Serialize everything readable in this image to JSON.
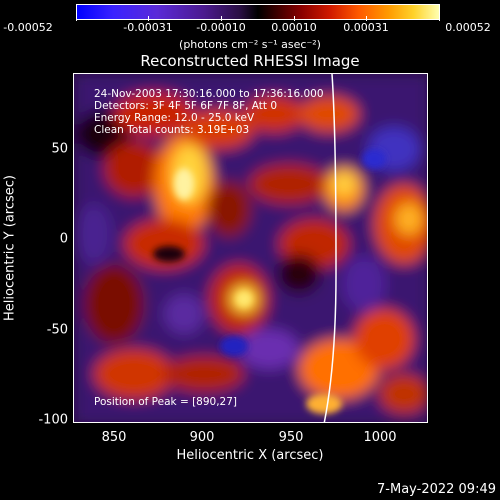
{
  "colorbar": {
    "ticks": [
      "-0.00052",
      "-0.00031",
      "-0.00010",
      "0.00010",
      "0.00031",
      "0.00052"
    ],
    "units": "(photons cm⁻² s⁻¹ asec⁻²)"
  },
  "title": "Reconstructed RHESSI Image",
  "info": {
    "line1": "24-Nov-2003 17:30:16.000 to 17:36:16.000",
    "line2": "Detectors: 3F 4F 5F 6F 7F 8F, Att 0",
    "line3": "Energy Range: 12.0 - 25.0 keV",
    "line4": "Clean     Total counts: 3.19E+03"
  },
  "peak": "Position of Peak = [890,27]",
  "axes": {
    "xlabel": "Heliocentric X (arcsec)",
    "ylabel": "Heliocentric Y (arcsec)",
    "xticks": [
      "850",
      "900",
      "950",
      "1000"
    ],
    "yticks": [
      "50",
      "0",
      "-50",
      "-100"
    ]
  },
  "timestamp": "7-May-2022 09:49"
}
